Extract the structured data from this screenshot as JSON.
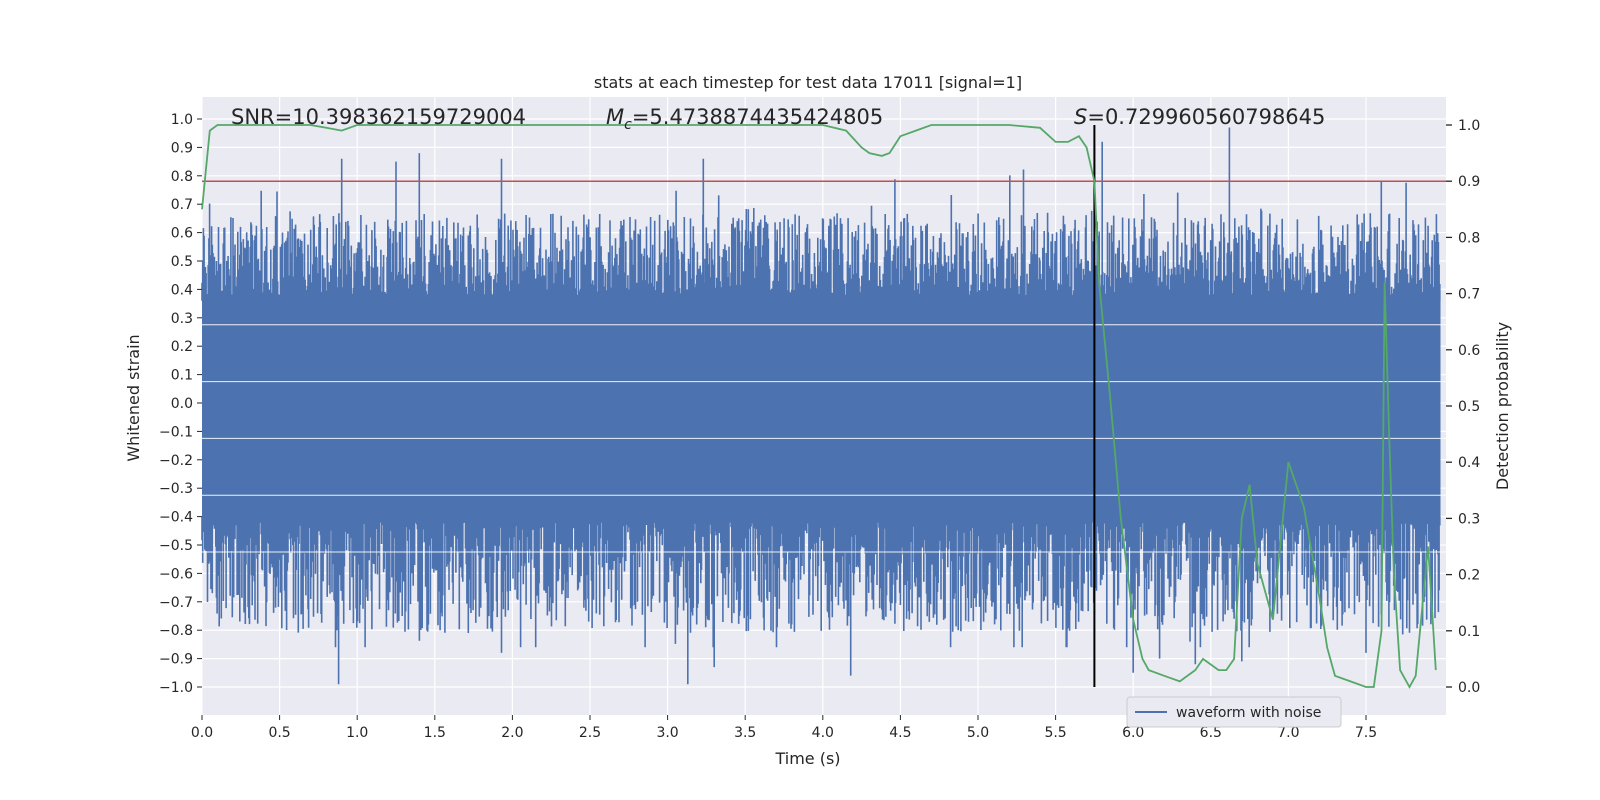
{
  "chart_data": {
    "type": "line",
    "title": "stats at each timestep for test data 17011 [signal=1]",
    "xlabel": "Time (s)",
    "ylabel": "Whitened strain",
    "y2label": "Detection probability",
    "xlim": [
      0.0,
      8.0
    ],
    "ylim": [
      -1.1,
      1.1
    ],
    "y2lim": [
      -0.05,
      1.05
    ],
    "xticks": [
      "0.0",
      "0.5",
      "1.0",
      "1.5",
      "2.0",
      "2.5",
      "3.0",
      "3.5",
      "4.0",
      "4.5",
      "5.0",
      "5.5",
      "6.0",
      "6.5",
      "7.0",
      "7.5"
    ],
    "xtick_values": [
      0.0,
      0.5,
      1.0,
      1.5,
      2.0,
      2.5,
      3.0,
      3.5,
      4.0,
      4.5,
      5.0,
      5.5,
      6.0,
      6.5,
      7.0,
      7.5
    ],
    "yticks": [
      "1.0",
      "0.9",
      "0.8",
      "0.7",
      "0.6",
      "0.5",
      "0.4",
      "0.3",
      "0.2",
      "0.1",
      "0.0",
      "−0.1",
      "−0.2",
      "−0.3",
      "−0.4",
      "−0.5",
      "−0.6",
      "−0.7",
      "−0.8",
      "−0.9",
      "−1.0"
    ],
    "ytick_values": [
      1.0,
      0.9,
      0.8,
      0.7,
      0.6,
      0.5,
      0.4,
      0.3,
      0.2,
      0.1,
      0.0,
      -0.1,
      -0.2,
      -0.3,
      -0.4,
      -0.5,
      -0.6,
      -0.7,
      -0.8,
      -0.9,
      -1.0
    ],
    "y2ticks": [
      "1.0",
      "0.9",
      "0.8",
      "0.7",
      "0.6",
      "0.5",
      "0.4",
      "0.3",
      "0.2",
      "0.1",
      "0.0"
    ],
    "y2tick_values": [
      1.0,
      0.9,
      0.8,
      0.7,
      0.6,
      0.5,
      0.4,
      0.3,
      0.2,
      0.1,
      0.0
    ],
    "annotations": {
      "snr": "SNR=10.398362159729004",
      "mc_symbol": "M",
      "mc_sub": "c",
      "mc_value": "=5.4738874435424805",
      "s_symbol": "S",
      "s_value": "=0.729960560798645"
    },
    "threshold": {
      "value": 0.9,
      "axis": "y2",
      "color": "#c44e52"
    },
    "event_time": 5.75,
    "legend": {
      "label": "waveform with noise",
      "placement": "lower-center-right"
    },
    "colors": {
      "waveform": "#4c72b0",
      "probability": "#55a868",
      "threshold": "#c44e52",
      "event": "#000000",
      "background": "#eaeaf2",
      "grid": "#ffffff"
    },
    "series": [
      {
        "name": "waveform with noise",
        "axis": "y",
        "kind": "noise-envelope",
        "duration": 7.98,
        "core_amplitude": 0.38,
        "typical_peak": 0.55,
        "max_abs": 1.0,
        "spikes_up": [
          [
            0.9,
            0.86
          ],
          [
            1.25,
            0.85
          ],
          [
            1.4,
            0.88
          ],
          [
            1.93,
            0.86
          ],
          [
            3.23,
            0.86
          ],
          [
            5.75,
            0.9
          ],
          [
            5.8,
            0.92
          ],
          [
            6.62,
            0.97
          ]
        ],
        "spikes_down": [
          [
            0.88,
            -0.99
          ],
          [
            3.13,
            -0.99
          ],
          [
            4.18,
            -0.96
          ],
          [
            1.93,
            -0.88
          ],
          [
            3.3,
            -0.93
          ],
          [
            6.0,
            -0.95
          ],
          [
            6.17,
            -0.9
          ],
          [
            6.4,
            -0.92
          ],
          [
            6.7,
            -0.91
          ],
          [
            7.5,
            -0.88
          ]
        ]
      },
      {
        "name": "detection probability",
        "axis": "y2",
        "x": [
          0.0,
          0.05,
          0.1,
          0.2,
          0.3,
          0.4,
          0.5,
          0.6,
          0.7,
          0.8,
          0.9,
          1.0,
          1.2,
          1.5,
          2.0,
          2.5,
          3.0,
          3.5,
          4.0,
          4.15,
          4.25,
          4.3,
          4.38,
          4.43,
          4.5,
          4.6,
          4.7,
          4.8,
          5.0,
          5.2,
          5.4,
          5.5,
          5.58,
          5.65,
          5.7,
          5.75,
          5.78,
          5.85,
          5.92,
          6.0,
          6.06,
          6.1,
          6.2,
          6.3,
          6.4,
          6.45,
          6.5,
          6.55,
          6.6,
          6.65,
          6.7,
          6.75,
          6.8,
          6.9,
          7.0,
          7.1,
          7.2,
          7.25,
          7.3,
          7.4,
          7.5,
          7.55,
          7.6,
          7.62,
          7.65,
          7.68,
          7.72,
          7.78,
          7.82,
          7.9,
          7.95
        ],
        "values": [
          0.85,
          0.99,
          1.0,
          1.0,
          1.0,
          1.0,
          1.0,
          1.0,
          1.0,
          0.995,
          0.99,
          1.0,
          1.0,
          1.0,
          1.0,
          1.0,
          1.0,
          1.0,
          1.0,
          0.99,
          0.96,
          0.95,
          0.945,
          0.95,
          0.98,
          0.99,
          1.0,
          1.0,
          1.0,
          1.0,
          0.995,
          0.97,
          0.97,
          0.98,
          0.96,
          0.9,
          0.72,
          0.52,
          0.3,
          0.12,
          0.05,
          0.03,
          0.02,
          0.01,
          0.03,
          0.05,
          0.04,
          0.03,
          0.03,
          0.05,
          0.3,
          0.36,
          0.22,
          0.12,
          0.4,
          0.32,
          0.16,
          0.07,
          0.02,
          0.01,
          0.0,
          0.0,
          0.1,
          0.72,
          0.44,
          0.2,
          0.03,
          0.0,
          0.02,
          0.25,
          0.03
        ]
      }
    ]
  }
}
